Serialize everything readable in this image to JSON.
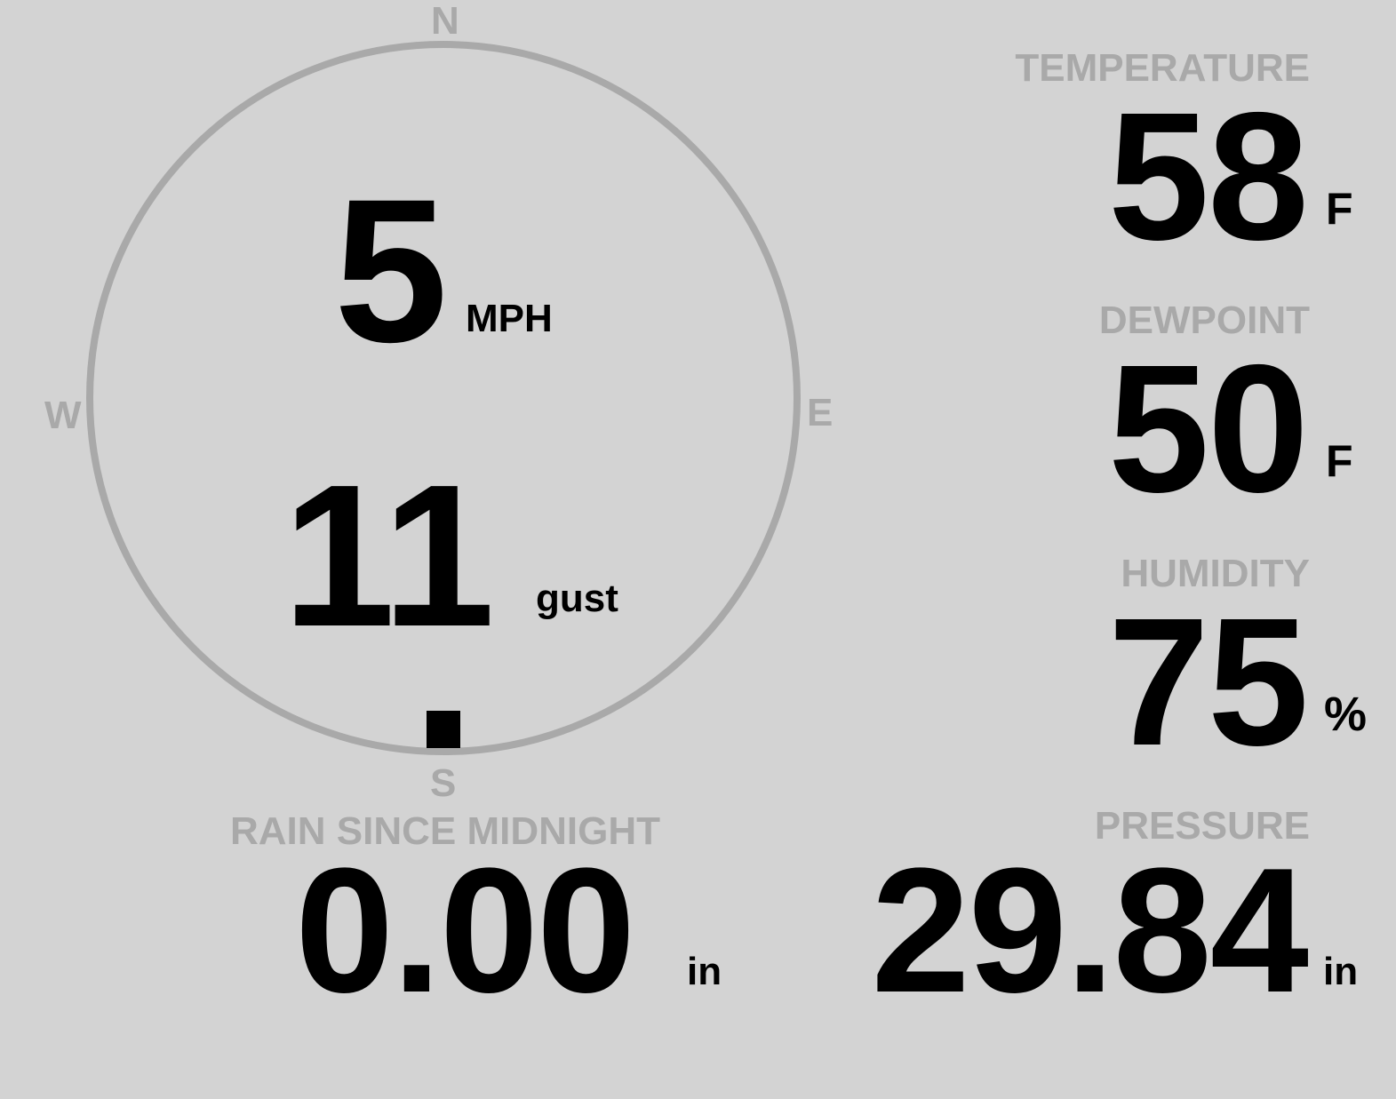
{
  "colors": {
    "background": "#d3d3d3",
    "label": "#a9a9a9",
    "value": "#000000"
  },
  "wind": {
    "compass": {
      "north": "N",
      "east": "E",
      "south": "S",
      "west": "W"
    },
    "speed": "5",
    "speed_unit": "MPH",
    "gust": "11",
    "gust_label": "gust",
    "direction_marker": "S"
  },
  "temperature": {
    "label": "TEMPERATURE",
    "value": "58",
    "unit": "F"
  },
  "dewpoint": {
    "label": "DEWPOINT",
    "value": "50",
    "unit": "F"
  },
  "humidity": {
    "label": "HUMIDITY",
    "value": "75",
    "unit": "%"
  },
  "pressure": {
    "label": "PRESSURE",
    "value": "29.84",
    "unit": "in"
  },
  "rain": {
    "label": "RAIN SINCE MIDNIGHT",
    "value": "0.00",
    "unit": "in"
  }
}
